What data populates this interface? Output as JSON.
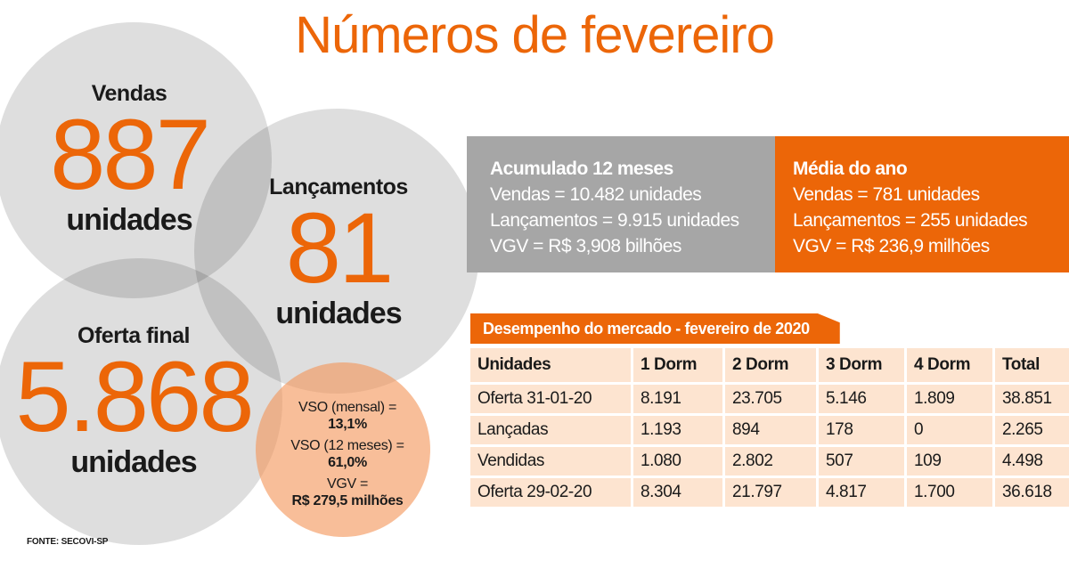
{
  "title": "Números de fevereiro",
  "circles": {
    "vendas": {
      "label": "Vendas",
      "value": "887",
      "unit": "unidades"
    },
    "lancamentos": {
      "label": "Lançamentos",
      "value": "81",
      "unit": "unidades"
    },
    "oferta": {
      "label": "Oferta final",
      "value": "5.868",
      "unit": "unidades"
    },
    "indicadores": {
      "vso_mensal_label": "VSO (mensal) =",
      "vso_mensal": "13,1%",
      "vso_12_label": "VSO (12 meses) =",
      "vso_12": "61,0%",
      "vgv_label": "VGV =",
      "vgv": "R$ 279,5 milhões"
    }
  },
  "acumulado": {
    "title": "Acumulado 12 meses",
    "lines": [
      "Vendas = 10.482 unidades",
      "Lançamentos = 9.915 unidades",
      "VGV = R$ 3,908 bilhões"
    ]
  },
  "media": {
    "title": "Média do ano",
    "lines": [
      "Vendas = 781 unidades",
      "Lançamentos = 255 unidades",
      "VGV = R$ 236,9 milhões"
    ]
  },
  "table": {
    "title": "Desempenho do mercado - fevereiro de 2020",
    "headers": [
      "Unidades",
      "1 Dorm",
      "2 Dorm",
      "3 Dorm",
      "4 Dorm",
      "Total"
    ],
    "rows": [
      [
        "Oferta 31-01-20",
        "8.191",
        "23.705",
        "5.146",
        "1.809",
        "38.851"
      ],
      [
        "Lançadas",
        "1.193",
        "894",
        "178",
        "0",
        "2.265"
      ],
      [
        "Vendidas",
        "1.080",
        "2.802",
        "507",
        "109",
        "4.498"
      ],
      [
        "Oferta 29-02-20",
        "8.304",
        "21.797",
        "4.817",
        "1.700",
        "36.618"
      ]
    ]
  },
  "source": "FONTE: SECOVI-SP",
  "colors": {
    "accent": "#ec6608",
    "gray_box": "#a6a6a6",
    "table_cell": "#fde4d0"
  }
}
